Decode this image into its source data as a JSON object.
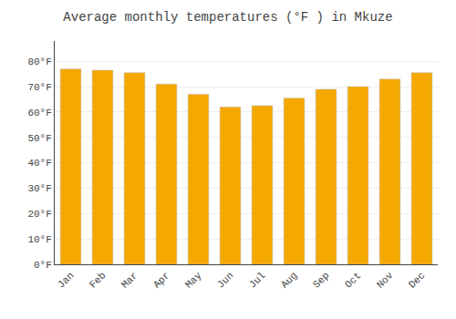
{
  "chart_data": {
    "type": "bar",
    "title": "Average monthly temperatures (°F ) in Mkuze",
    "categories": [
      "Jan",
      "Feb",
      "Mar",
      "Apr",
      "May",
      "Jun",
      "Jul",
      "Aug",
      "Sep",
      "Oct",
      "Nov",
      "Dec"
    ],
    "values": [
      77,
      76.5,
      75.5,
      71,
      67,
      62,
      62.5,
      65.5,
      69,
      70,
      73,
      75.5
    ],
    "color": "#F5A800",
    "ylim": [
      0,
      88
    ],
    "yticks": [
      {
        "value": 0,
        "label": "0°F"
      },
      {
        "value": 10,
        "label": "10°F"
      },
      {
        "value": 20,
        "label": "20°F"
      },
      {
        "value": 30,
        "label": "30°F"
      },
      {
        "value": 40,
        "label": "40°F"
      },
      {
        "value": 50,
        "label": "50°F"
      },
      {
        "value": 60,
        "label": "60°F"
      },
      {
        "value": 70,
        "label": "70°F"
      },
      {
        "value": 80,
        "label": "80°F"
      }
    ],
    "grid": true
  }
}
